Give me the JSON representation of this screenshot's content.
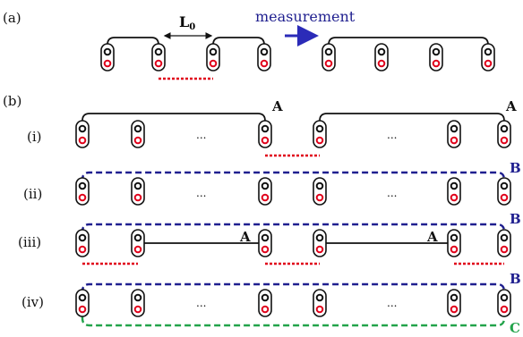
{
  "panel_a": {
    "label": "(a)",
    "length_label": "L",
    "length_sub": "0",
    "measurement_label": "measurement"
  },
  "panel_b": {
    "label": "(b)",
    "rows": [
      {
        "label": "(i)",
        "link_labels": [
          "A",
          "A"
        ]
      },
      {
        "label": "(ii)",
        "link_labels": [
          "B"
        ]
      },
      {
        "label": "(iii)",
        "link_labels": [
          "A",
          "A",
          "B"
        ]
      },
      {
        "label": "(iv)",
        "link_labels": [
          "B",
          "C"
        ]
      }
    ],
    "ellipsis": "..."
  },
  "colors": {
    "black_link": "#111111",
    "red_link": "#e0001a",
    "blue_link": "#1f1f8f",
    "green_link": "#22a34a",
    "measurement_text": "#1f1f8f",
    "arrow": "#2b2bb8"
  }
}
